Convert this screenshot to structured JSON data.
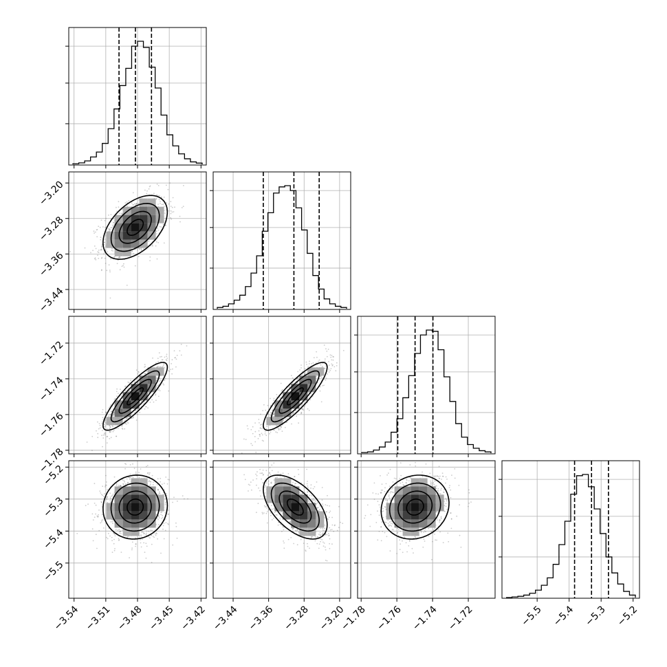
{
  "chart_data": {
    "type": "corner",
    "grid": true,
    "params": [
      {
        "range": [
          -3.545,
          -3.415
        ],
        "mean": -3.4822,
        "sd": 0.0152,
        "quantiles": [
          -3.4975,
          -3.482,
          -3.4668
        ],
        "ticks": [
          {
            "value": -3.54,
            "label": "−3.54"
          },
          {
            "value": -3.51,
            "label": "−3.51"
          },
          {
            "value": -3.48,
            "label": "−3.48"
          },
          {
            "value": -3.45,
            "label": "−3.45"
          },
          {
            "value": -3.42,
            "label": "−3.42"
          }
        ],
        "hist": [
          0.005,
          0.012,
          0.028,
          0.06,
          0.1,
          0.17,
          0.29,
          0.45,
          0.64,
          0.78,
          0.96,
          1.0,
          0.95,
          0.79,
          0.62,
          0.4,
          0.24,
          0.15,
          0.085,
          0.045,
          0.02,
          0.01
        ]
      },
      {
        "range": [
          -3.485,
          -3.175
        ],
        "mean": -3.3,
        "sd": 0.036,
        "quantiles": [
          -3.372,
          -3.303,
          -3.246
        ],
        "ticks": [
          {
            "value": -3.44,
            "label": "−3.44"
          },
          {
            "value": -3.36,
            "label": "−3.36"
          },
          {
            "value": -3.28,
            "label": "−3.28"
          },
          {
            "value": -3.2,
            "label": "−3.20"
          }
        ],
        "hist": [
          0.01,
          0.02,
          0.04,
          0.07,
          0.11,
          0.18,
          0.29,
          0.43,
          0.63,
          0.78,
          0.94,
          0.99,
          1.0,
          0.96,
          0.82,
          0.64,
          0.45,
          0.27,
          0.16,
          0.08,
          0.04,
          0.02,
          0.01
        ]
      },
      {
        "range": [
          -1.782,
          -1.705
        ],
        "mean": -1.7498,
        "sd": 0.0095,
        "quantiles": [
          -1.7595,
          -1.7498,
          -1.7398
        ],
        "ticks": [
          {
            "value": -1.78,
            "label": "−1.78"
          },
          {
            "value": -1.76,
            "label": "−1.76"
          },
          {
            "value": -1.74,
            "label": "−1.74"
          },
          {
            "value": -1.72,
            "label": "−1.72"
          }
        ],
        "hist": [
          0.005,
          0.01,
          0.025,
          0.05,
          0.09,
          0.17,
          0.28,
          0.45,
          0.63,
          0.81,
          0.96,
          1.0,
          0.99,
          0.84,
          0.62,
          0.42,
          0.24,
          0.13,
          0.07,
          0.04,
          0.02,
          0.01
        ]
      },
      {
        "range": [
          -5.61,
          -5.18
        ],
        "mean": -5.325,
        "sd": 0.05,
        "quantiles": [
          -5.383,
          -5.33,
          -5.277
        ],
        "ticks": [
          {
            "value": -5.5,
            "label": "−5.5"
          },
          {
            "value": -5.4,
            "label": "−5.4"
          },
          {
            "value": -5.3,
            "label": "−5.3"
          },
          {
            "value": -5.2,
            "label": "−5.2"
          }
        ],
        "hist": [
          0.0,
          0.005,
          0.01,
          0.02,
          0.035,
          0.06,
          0.1,
          0.16,
          0.27,
          0.43,
          0.62,
          0.84,
          0.99,
          1.0,
          0.9,
          0.72,
          0.52,
          0.33,
          0.2,
          0.11,
          0.05,
          0.02
        ]
      }
    ],
    "correlations": [
      {
        "i": 1,
        "j": 0,
        "rho": 0.48
      },
      {
        "i": 2,
        "j": 0,
        "rho": 0.86
      },
      {
        "i": 2,
        "j": 1,
        "rho": 0.86
      },
      {
        "i": 3,
        "j": 0,
        "rho": 0.05
      },
      {
        "i": 3,
        "j": 1,
        "rho": -0.55
      },
      {
        "i": 3,
        "j": 2,
        "rho": 0.12
      }
    ]
  }
}
